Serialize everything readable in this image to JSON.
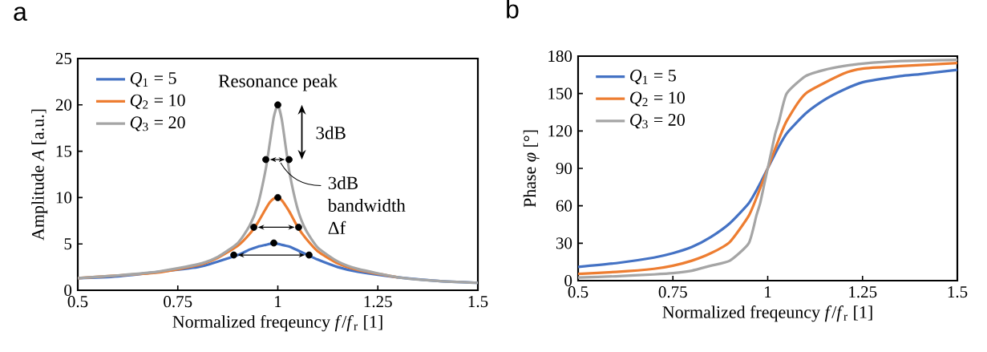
{
  "chart_data": [
    {
      "type": "line",
      "title": "a",
      "xlabel": "Normalized freqeuncy *f*/*f*$_{r}$ [1]",
      "ylabel": "Amplitude *A* [a.u.]",
      "x": [
        0.5,
        0.6,
        0.7,
        0.8,
        0.85,
        0.9,
        0.93,
        0.95,
        0.97,
        0.98,
        0.99,
        1.0,
        1.01,
        1.02,
        1.03,
        1.05,
        1.07,
        1.1,
        1.15,
        1.2,
        1.3,
        1.4,
        1.5
      ],
      "series": [
        {
          "name": "*Q*$_{1}$ = 5",
          "color": "#4472c4",
          "values": [
            1.3,
            1.5,
            null,
            2.5,
            3.1,
            3.8,
            4.4,
            4.7,
            4.9,
            5.0,
            5.0,
            5.0,
            4.9,
            4.8,
            4.7,
            4.3,
            3.9,
            3.3,
            2.5,
            2.0,
            1.4,
            1.0,
            0.8
          ]
        },
        {
          "name": "*Q*$_{2}$ = 10",
          "color": "#ed7d31",
          "values": [
            1.3,
            1.6,
            1.9,
            2.7,
            3.5,
            4.8,
            6.1,
            7.3,
            8.8,
            9.5,
            9.9,
            10.0,
            9.7,
            9.1,
            8.4,
            6.8,
            5.6,
            4.2,
            2.9,
            2.2,
            1.4,
            null,
            null
          ]
        },
        {
          "name": "*Q*$_{3}$ = 20",
          "color": "#a5a5a5",
          "values": [
            1.3,
            1.6,
            2.0,
            2.8,
            3.6,
            5.1,
            7.0,
            9.2,
            13.1,
            15.9,
            18.7,
            20.0,
            18.4,
            15.4,
            12.5,
            8.7,
            6.5,
            4.6,
            3.1,
            2.3,
            1.4,
            1.0,
            0.8
          ]
        },
        {
          "type": "scatter",
          "marker": "circle",
          "color": "#000000",
          "x": [
            1.0,
            0.97,
            1.028,
            1.0,
            0.94,
            1.052,
            0.99,
            0.89,
            1.078
          ],
          "values": [
            20,
            14.1,
            14.1,
            10,
            6.8,
            6.8,
            5.1,
            3.8,
            3.8
          ]
        }
      ],
      "xlim": [
        0.5,
        1.5
      ],
      "xticks": [
        0.5,
        0.75,
        1,
        1.25,
        1.5
      ],
      "ylim": [
        0,
        25
      ],
      "yticks": [
        0,
        5,
        10,
        15,
        20,
        25
      ],
      "legend": "top left",
      "marker": "none",
      "annotations": [
        "Resonance peak",
        "3dB",
        "3dB bandwidth Δf"
      ]
    },
    {
      "type": "line",
      "title": "b",
      "xlabel": "Normalized freqeuncy *f*/*f*$_{r}$ [1]",
      "ylabel": "Phase  *φ* [°]",
      "series": [
        {
          "name": "*Q*$_{1}$ = 5",
          "color": "#4472c4",
          "x": [
            0.5,
            0.6,
            0.7,
            0.75,
            0.8,
            0.85,
            0.9,
            0.95,
            0.975,
            1.0,
            1.025,
            1.05,
            1.1,
            1.15,
            1.2,
            1.25,
            1.35,
            1.4,
            1.5
          ],
          "values": [
            11,
            14,
            18.5,
            22,
            27,
            35,
            46,
            62,
            75,
            90,
            105,
            118,
            134,
            145,
            153,
            159,
            164,
            165.5,
            169
          ]
        },
        {
          "name": "*Q*$_{2}$ = 10",
          "color": "#ed7d31",
          "x": [
            0.5,
            0.6,
            0.7,
            0.75,
            0.8,
            0.85,
            0.9,
            0.95,
            0.975,
            1.0,
            1.025,
            1.05,
            1.1,
            1.2,
            1.25,
            1.35,
            1.5
          ],
          "values": [
            5.4,
            7,
            9.5,
            12,
            16,
            22,
            31,
            52,
            70,
            90,
            110,
            128,
            150,
            166,
            170,
            172,
            174.5
          ]
        },
        {
          "name": "*Q*$_{3}$ = 20",
          "color": "#a5a5a5",
          "x": [
            0.5,
            0.6,
            0.7,
            0.75,
            0.8,
            0.85,
            0.9,
            0.95,
            0.97,
            0.98,
            0.99,
            1.0,
            1.01,
            1.02,
            1.03,
            1.05,
            1.1,
            1.15,
            1.2,
            1.25,
            1.35,
            1.5
          ],
          "values": [
            2.5,
            3.5,
            5,
            6,
            8,
            12,
            16,
            30,
            52,
            62,
            76,
            90,
            104,
            118,
            128,
            150,
            164,
            169,
            172,
            174,
            176,
            177
          ]
        }
      ],
      "xlim": [
        0.5,
        1.5
      ],
      "xticks": [
        0.5,
        0.75,
        1,
        1.25,
        1.5
      ],
      "ylim": [
        0,
        180
      ],
      "yticks": [
        0,
        30,
        60,
        90,
        120,
        150,
        180
      ],
      "legend": "top left",
      "marker": "none"
    }
  ]
}
